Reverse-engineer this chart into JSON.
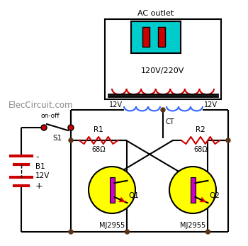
{
  "ac_outlet_label": "AC outlet",
  "voltage_label": "120V/220V",
  "ct_label": "CT",
  "v12_left": "12V",
  "v12_right": "12V",
  "r1_label": "R1",
  "r2_label": "R2",
  "r_value": "68Ω",
  "q1_label": "Q1",
  "q2_label": "Q2",
  "transistor_model": "MJ2955",
  "battery_label": "B1",
  "battery_voltage": "12V",
  "switch_label": "S1",
  "switch_onoff": "on-off",
  "brand": "ElecCircuit.com",
  "transformer_primary_color": "#cc0000",
  "transformer_secondary_color": "#3366ff",
  "ac_outlet_fill": "#00cccc",
  "ac_plug_color": "#cc0000",
  "resistor_color": "#cc0000",
  "transistor_fill": "#ffff00",
  "transistor_base_color": "#cc00cc",
  "wire_color": "#000000",
  "dot_color": "#5c3317",
  "battery_color": "#cc0000",
  "switch_dot_color": "#cc0000"
}
